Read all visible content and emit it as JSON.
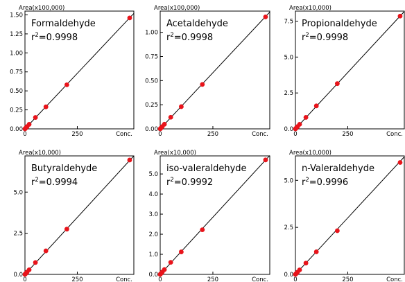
{
  "chart_data": [
    {
      "type": "scatter",
      "ylabel": "Area(x100,000)",
      "xlabel": "Conc.",
      "title": "Formaldehyde",
      "r2_prefix": "r",
      "r2_sup": "2",
      "r2_value": "=0.9998",
      "xticks": [
        "0",
        "250"
      ],
      "yticks": [
        "0.00",
        "0.25",
        "0.50",
        "0.75",
        "1.00",
        "1.25",
        "1.50"
      ],
      "ytick_values": [
        0,
        0.25,
        0.5,
        0.75,
        1.0,
        1.25,
        1.5
      ],
      "xlim": [
        0,
        520
      ],
      "ylim": [
        0,
        1.55
      ],
      "x": [
        0,
        2,
        5,
        10,
        20,
        50,
        100,
        200,
        500
      ],
      "y": [
        0.0,
        0.006,
        0.015,
        0.03,
        0.06,
        0.15,
        0.29,
        0.58,
        1.46
      ],
      "line": [
        [
          0,
          0.0
        ],
        [
          520,
          1.52
        ]
      ],
      "point_color": "#e8141b",
      "line_color": "#000000"
    },
    {
      "type": "scatter",
      "ylabel": "Area(x100,000)",
      "xlabel": "Conc.",
      "title": "Acetaldehyde",
      "r2_prefix": "r",
      "r2_sup": "2",
      "r2_value": "=0.9998",
      "xticks": [
        "0",
        "250"
      ],
      "yticks": [
        "0.00",
        "0.25",
        "0.50",
        "0.75",
        "1.00"
      ],
      "ytick_values": [
        0,
        0.25,
        0.5,
        0.75,
        1.0
      ],
      "xlim": [
        0,
        520
      ],
      "ylim": [
        0,
        1.22
      ],
      "x": [
        0,
        2,
        5,
        10,
        20,
        50,
        100,
        200,
        500
      ],
      "y": [
        0.0,
        0.005,
        0.012,
        0.024,
        0.048,
        0.12,
        0.23,
        0.46,
        1.16
      ],
      "line": [
        [
          0,
          0.0
        ],
        [
          520,
          1.21
        ]
      ],
      "point_color": "#e8141b",
      "line_color": "#000000"
    },
    {
      "type": "scatter",
      "ylabel": "Area(x10,000)",
      "xlabel": "Conc.",
      "title": "Propionaldehyde",
      "r2_prefix": "r",
      "r2_sup": "2",
      "r2_value": "=0.9998",
      "xticks": [
        "0",
        "250"
      ],
      "yticks": [
        "0.0",
        "2.5",
        "5.0",
        "7.5"
      ],
      "ytick_values": [
        0,
        2.5,
        5.0,
        7.5
      ],
      "xlim": [
        0,
        520
      ],
      "ylim": [
        0,
        8.2
      ],
      "x": [
        0,
        2,
        5,
        10,
        20,
        50,
        100,
        200,
        500
      ],
      "y": [
        0.0,
        0.03,
        0.08,
        0.16,
        0.32,
        0.8,
        1.6,
        3.15,
        7.85
      ],
      "line": [
        [
          0,
          0.0
        ],
        [
          520,
          8.17
        ]
      ],
      "point_color": "#e8141b",
      "line_color": "#000000"
    },
    {
      "type": "scatter",
      "ylabel": "Area(x10,000)",
      "xlabel": "Conc.",
      "title": "Butyraldehyde",
      "r2_prefix": "r",
      "r2_sup": "2",
      "r2_value": "=0.9994",
      "xticks": [
        "0",
        "250"
      ],
      "yticks": [
        "0.0",
        "2.5",
        "5.0"
      ],
      "ytick_values": [
        0,
        2.5,
        5.0
      ],
      "xlim": [
        0,
        520
      ],
      "ylim": [
        0,
        7.2
      ],
      "x": [
        0,
        2,
        5,
        10,
        20,
        50,
        100,
        200,
        500
      ],
      "y": [
        0.0,
        0.03,
        0.07,
        0.14,
        0.28,
        0.72,
        1.43,
        2.75,
        6.95
      ],
      "line": [
        [
          0,
          0.0
        ],
        [
          520,
          7.2
        ]
      ],
      "point_color": "#e8141b",
      "line_color": "#000000"
    },
    {
      "type": "scatter",
      "ylabel": "Area(x10,000)",
      "xlabel": "Conc.",
      "title": "iso-valeraldehyde",
      "r2_prefix": "r",
      "r2_sup": "2",
      "r2_value": "=0.9992",
      "xticks": [
        "0",
        "250"
      ],
      "yticks": [
        "0.0",
        "1.0",
        "2.0",
        "3.0",
        "4.0",
        "5.0"
      ],
      "ytick_values": [
        0,
        1,
        2,
        3,
        4,
        5
      ],
      "xlim": [
        0,
        520
      ],
      "ylim": [
        0,
        5.9
      ],
      "x": [
        0,
        2,
        5,
        10,
        20,
        50,
        100,
        200,
        500
      ],
      "y": [
        0.0,
        0.025,
        0.06,
        0.12,
        0.24,
        0.6,
        1.12,
        2.22,
        5.7
      ],
      "line": [
        [
          0,
          0.0
        ],
        [
          520,
          5.92
        ]
      ],
      "point_color": "#e8141b",
      "line_color": "#000000"
    },
    {
      "type": "scatter",
      "ylabel": "Area(x10,000)",
      "xlabel": "Conc.",
      "title": "n-Valeraldehyde",
      "r2_prefix": "r",
      "r2_sup": "2",
      "r2_value": "=0.9996",
      "xticks": [
        "0",
        "250"
      ],
      "yticks": [
        "0.0",
        "2.5",
        "5.0"
      ],
      "ytick_values": [
        0,
        2.5,
        5.0
      ],
      "xlim": [
        0,
        520
      ],
      "ylim": [
        0,
        6.3
      ],
      "x": [
        0,
        2,
        5,
        10,
        20,
        50,
        100,
        200,
        500
      ],
      "y": [
        0.0,
        0.025,
        0.06,
        0.12,
        0.24,
        0.6,
        1.2,
        2.32,
        5.95
      ],
      "line": [
        [
          0,
          0.0
        ],
        [
          520,
          6.25
        ]
      ],
      "point_color": "#e8141b",
      "line_color": "#000000"
    }
  ]
}
